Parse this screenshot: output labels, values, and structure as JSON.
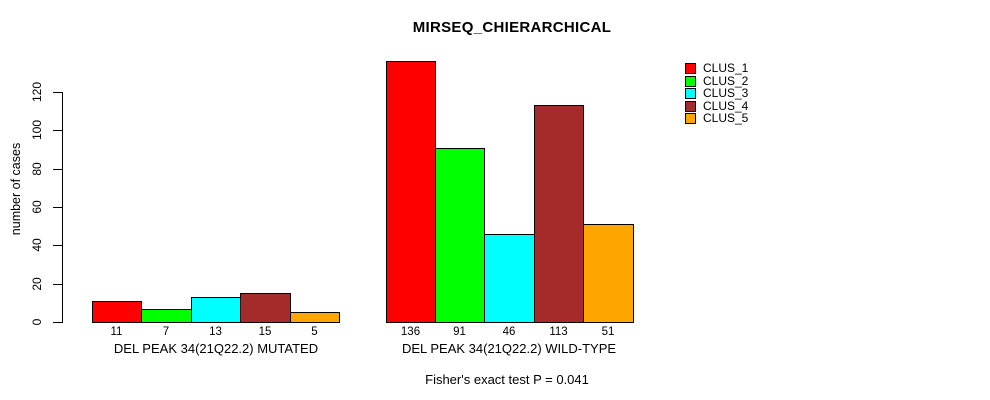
{
  "title": "MIRSEQ_CHIERARCHICAL",
  "y_axis": {
    "label": "number of cases",
    "ticks": [
      0,
      20,
      40,
      60,
      80,
      100,
      120
    ]
  },
  "legend": {
    "items": [
      {
        "label": "CLUS_1",
        "color": "#ff0000"
      },
      {
        "label": "CLUS_2",
        "color": "#00ff00"
      },
      {
        "label": "CLUS_3",
        "color": "#00ffff"
      },
      {
        "label": "CLUS_4",
        "color": "#a52a2a"
      },
      {
        "label": "CLUS_5",
        "color": "#ffa500"
      }
    ]
  },
  "footer": {
    "annotation": "Fisher's exact test P = 0.041"
  },
  "chart_data": {
    "type": "bar",
    "title": "MIRSEQ_CHIERARCHICAL",
    "ylabel": "number of cases",
    "ylim": [
      0,
      140
    ],
    "yticks": [
      0,
      20,
      40,
      60,
      80,
      100,
      120
    ],
    "grid": false,
    "legend_position": "right",
    "categories": [
      "DEL PEAK 34(21Q22.2) MUTATED",
      "DEL PEAK 34(21Q22.2) WILD-TYPE"
    ],
    "series": [
      {
        "name": "CLUS_1",
        "color": "#ff0000",
        "values": [
          11,
          136
        ]
      },
      {
        "name": "CLUS_2",
        "color": "#00ff00",
        "values": [
          7,
          91
        ]
      },
      {
        "name": "CLUS_3",
        "color": "#00ffff",
        "values": [
          13,
          46
        ]
      },
      {
        "name": "CLUS_4",
        "color": "#a52a2a",
        "values": [
          15,
          113
        ]
      },
      {
        "name": "CLUS_5",
        "color": "#ffa500",
        "values": [
          5,
          51
        ]
      }
    ],
    "bar_value_labels": [
      [
        11,
        7,
        13,
        15,
        5
      ],
      [
        136,
        91,
        46,
        113,
        51
      ]
    ],
    "annotation": "Fisher's exact test P = 0.041"
  }
}
